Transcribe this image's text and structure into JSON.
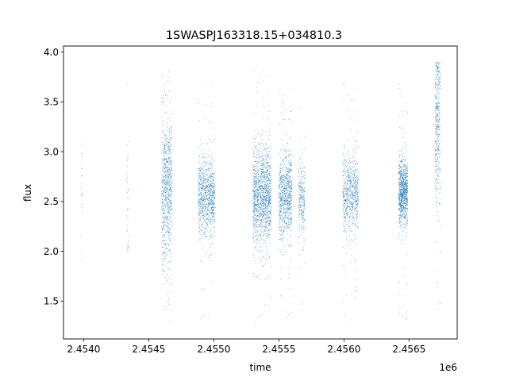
{
  "chart_data": {
    "type": "scatter",
    "title": "1SWASPJ163318.15+034810.3",
    "xlabel": "time",
    "ylabel": "flux",
    "x_offset_label": "1e6",
    "xlim": [
      2453845,
      2456870
    ],
    "ylim": [
      1.12,
      4.06
    ],
    "x_ticks": [
      2454000,
      2454500,
      2455000,
      2455500,
      2456000,
      2456500
    ],
    "x_tick_labels": [
      "2.4540",
      "2.4545",
      "2.4550",
      "2.4555",
      "2.4560",
      "2.4565"
    ],
    "y_ticks": [
      1.5,
      2.0,
      2.5,
      3.0,
      3.5,
      4.0
    ],
    "y_tick_labels": [
      "1.5",
      "2.0",
      "2.5",
      "3.0",
      "3.5",
      "4.0"
    ],
    "grid": false,
    "marker_color": "#1f77b4",
    "seasons": [
      {
        "x_start": 2453980,
        "x_end": 2453990,
        "center": 2.65,
        "spread": 0.35,
        "y_min": 1.85,
        "y_max": 3.3,
        "count": 25
      },
      {
        "x_start": 2454330,
        "x_end": 2454345,
        "center": 2.6,
        "spread": 0.45,
        "y_min": 2.0,
        "y_max": 3.78,
        "count": 40
      },
      {
        "x_start": 2454600,
        "x_end": 2454680,
        "center": 2.6,
        "spread": 0.38,
        "y_min": 1.25,
        "y_max": 3.85,
        "count": 900
      },
      {
        "x_start": 2454880,
        "x_end": 2455010,
        "center": 2.55,
        "spread": 0.2,
        "y_min": 1.28,
        "y_max": 3.72,
        "count": 1000
      },
      {
        "x_start": 2455300,
        "x_end": 2455440,
        "center": 2.55,
        "spread": 0.25,
        "y_min": 1.25,
        "y_max": 3.9,
        "count": 1500
      },
      {
        "x_start": 2455500,
        "x_end": 2455600,
        "center": 2.55,
        "spread": 0.22,
        "y_min": 1.3,
        "y_max": 3.65,
        "count": 900
      },
      {
        "x_start": 2455650,
        "x_end": 2455700,
        "center": 2.55,
        "spread": 0.2,
        "y_min": 1.4,
        "y_max": 3.55,
        "count": 300
      },
      {
        "x_start": 2455990,
        "x_end": 2456110,
        "center": 2.6,
        "spread": 0.2,
        "y_min": 1.28,
        "y_max": 3.7,
        "count": 800
      },
      {
        "x_start": 2456420,
        "x_end": 2456490,
        "center": 2.6,
        "spread": 0.17,
        "y_min": 1.3,
        "y_max": 3.87,
        "count": 1000
      },
      {
        "x_start": 2456700,
        "x_end": 2456740,
        "center": 3.3,
        "spread": 0.4,
        "y_min": 1.4,
        "y_max": 3.9,
        "count": 450
      }
    ]
  }
}
